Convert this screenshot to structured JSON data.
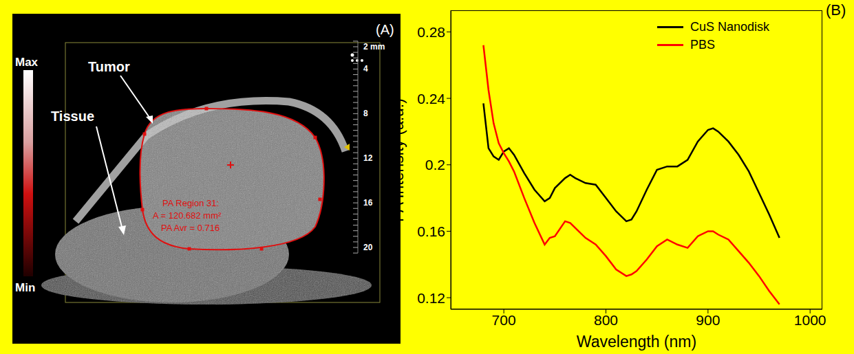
{
  "image_panel": {
    "panel_label": "(A)",
    "annotations": [
      "Tumor",
      "Tissue"
    ],
    "color_bar": {
      "max_label": "Max",
      "min_label": "Min"
    },
    "depth_scale": {
      "ticks": [
        {
          "value": 2,
          "label": "2 mm"
        },
        4,
        8,
        12,
        16,
        20
      ]
    },
    "region_text": [
      "PA Region 31:",
      "A = 120.682 mm²",
      "PA Avr = 0.716"
    ]
  },
  "chart_data": {
    "type": "line",
    "panel_label": "(B)",
    "xlabel": "Wavelength (nm)",
    "ylabel": "PA Intensity (a.u.)",
    "x": [
      680,
      685,
      690,
      695,
      700,
      705,
      710,
      720,
      730,
      740,
      745,
      750,
      760,
      765,
      770,
      780,
      790,
      800,
      810,
      820,
      825,
      830,
      840,
      850,
      860,
      870,
      880,
      890,
      900,
      905,
      910,
      920,
      930,
      940,
      950,
      960,
      970
    ],
    "series": [
      {
        "name": "CuS Nanodisk",
        "color": "#000000",
        "values": [
          0.237,
          0.21,
          0.205,
          0.203,
          0.208,
          0.21,
          0.206,
          0.195,
          0.185,
          0.178,
          0.18,
          0.186,
          0.192,
          0.194,
          0.192,
          0.189,
          0.188,
          0.18,
          0.172,
          0.166,
          0.167,
          0.172,
          0.185,
          0.197,
          0.199,
          0.199,
          0.203,
          0.214,
          0.221,
          0.222,
          0.22,
          0.214,
          0.206,
          0.196,
          0.183,
          0.17,
          0.156
        ]
      },
      {
        "name": "PBS",
        "color": "#ff0000",
        "values": [
          0.272,
          0.245,
          0.225,
          0.213,
          0.207,
          0.202,
          0.196,
          0.18,
          0.165,
          0.152,
          0.156,
          0.157,
          0.166,
          0.165,
          0.162,
          0.156,
          0.152,
          0.145,
          0.137,
          0.133,
          0.134,
          0.136,
          0.143,
          0.151,
          0.155,
          0.152,
          0.15,
          0.157,
          0.16,
          0.16,
          0.158,
          0.155,
          0.148,
          0.141,
          0.133,
          0.124,
          0.116
        ]
      }
    ],
    "xlim": [
      648,
      1012
    ],
    "ylim": [
      0.113,
      0.293
    ],
    "xticks": [
      700,
      800,
      900,
      1000
    ],
    "yticks": [
      0.12,
      0.16,
      0.2,
      0.24,
      0.28
    ],
    "legend": "upper right",
    "grid": false
  }
}
